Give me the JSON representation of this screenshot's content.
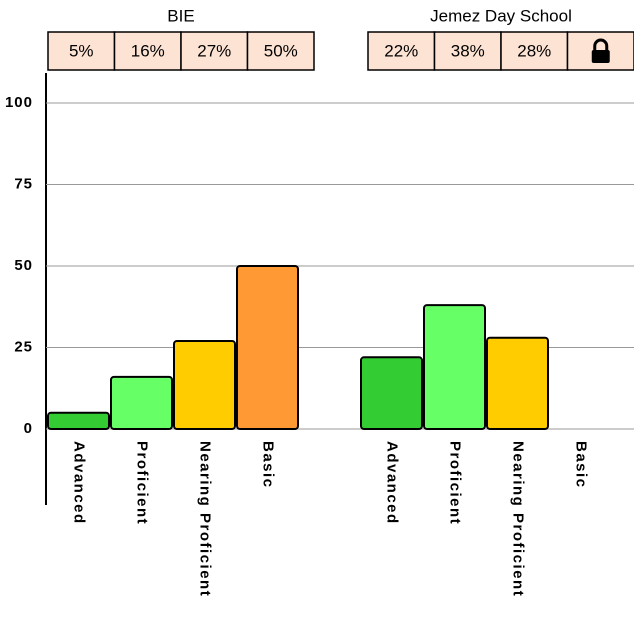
{
  "chart_data": {
    "type": "bar",
    "categories": [
      "Advanced",
      "Proficient",
      "Nearing Proficient",
      "Basic"
    ],
    "colors": [
      "#33cc33",
      "#66ff66",
      "#ffcc00",
      "#ff9933"
    ],
    "series": [
      {
        "name": "BIE",
        "values": [
          5,
          16,
          27,
          50
        ],
        "value_labels": [
          "5%",
          "16%",
          "27%",
          "50%"
        ]
      },
      {
        "name": "Jemez Day School",
        "values": [
          22,
          38,
          28,
          null
        ],
        "value_labels": [
          "22%",
          "38%",
          "28%",
          null
        ]
      }
    ],
    "ylim": [
      0,
      100
    ],
    "yticks": [
      0,
      25,
      50,
      75,
      100
    ],
    "grid": true
  }
}
